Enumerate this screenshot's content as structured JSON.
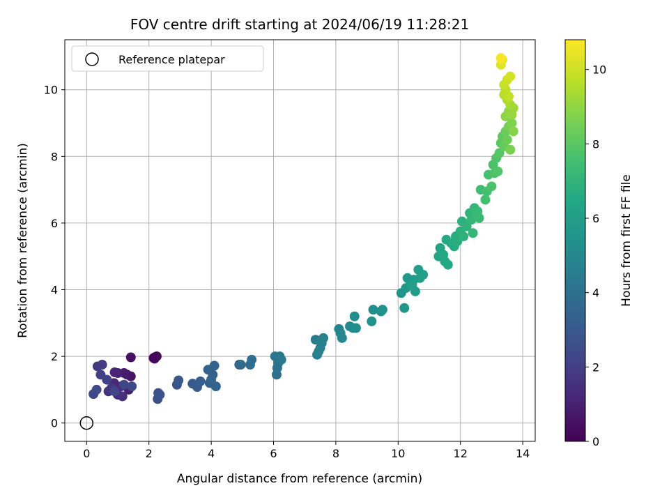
{
  "chart_data": {
    "type": "scatter",
    "title": "FOV centre drift starting at 2024/06/19 11:28:21",
    "xlabel": "Angular distance from reference (arcmin)",
    "ylabel": "Rotation from reference (arcmin)",
    "xlim": [
      -0.7,
      14.4
    ],
    "ylim": [
      -0.55,
      11.5
    ],
    "x_ticks": [
      0,
      2,
      4,
      6,
      8,
      10,
      12,
      14
    ],
    "y_ticks": [
      0,
      2,
      4,
      6,
      8,
      10
    ],
    "x_tick_labels": [
      "0",
      "2",
      "4",
      "6",
      "8",
      "10",
      "12",
      "14"
    ],
    "y_tick_labels": [
      "0",
      "2",
      "4",
      "6",
      "8",
      "10"
    ],
    "grid": true,
    "colormap": "viridis",
    "colorbar": {
      "label": "Hours from first FF file",
      "range": [
        0,
        10.8
      ],
      "ticks": [
        0,
        2,
        4,
        6,
        8,
        10
      ],
      "tick_labels": [
        "0",
        "2",
        "4",
        "6",
        "8",
        "10"
      ]
    },
    "legend": {
      "position": "top-left",
      "entries": [
        "Reference platepar"
      ]
    },
    "reference_point": {
      "x": 0,
      "y": 0,
      "marker": "open-circle"
    },
    "series": [
      {
        "points": [
          [
            2.15,
            1.95,
            0.1
          ],
          [
            2.2,
            1.98,
            0.15
          ],
          [
            2.25,
            2.0,
            0.2
          ],
          [
            2.18,
            1.93,
            0.25
          ],
          [
            1.42,
            1.97,
            0.5
          ],
          [
            1.42,
            1.4,
            0.6
          ],
          [
            1.3,
            1.45,
            0.7
          ],
          [
            1.2,
            1.5,
            0.8
          ],
          [
            1.35,
            1.0,
            0.9
          ],
          [
            1.0,
            1.5,
            1.0
          ],
          [
            0.9,
            1.52,
            1.1
          ],
          [
            0.88,
            1.2,
            1.2
          ],
          [
            1.1,
            1.1,
            1.3
          ],
          [
            1.0,
            0.85,
            1.4
          ],
          [
            1.15,
            0.8,
            1.5
          ],
          [
            0.7,
            0.95,
            1.6
          ],
          [
            0.8,
            1.05,
            1.7
          ],
          [
            0.35,
            1.7,
            1.8
          ],
          [
            0.5,
            1.75,
            1.9
          ],
          [
            0.45,
            1.45,
            2.0
          ],
          [
            0.65,
            1.3,
            2.1
          ],
          [
            0.9,
            0.95,
            2.2
          ],
          [
            1.2,
            1.15,
            2.3
          ],
          [
            1.45,
            1.1,
            2.4
          ],
          [
            0.22,
            0.87,
            2.4
          ],
          [
            0.32,
            1.0,
            2.5
          ],
          [
            2.28,
            0.72,
            2.6
          ],
          [
            2.35,
            0.85,
            2.7
          ],
          [
            2.3,
            0.9,
            2.7
          ],
          [
            2.9,
            1.15,
            2.8
          ],
          [
            2.95,
            1.28,
            2.9
          ],
          [
            3.4,
            1.18,
            3.0
          ],
          [
            3.55,
            1.08,
            3.1
          ],
          [
            3.65,
            1.25,
            3.15
          ],
          [
            3.95,
            1.2,
            3.2
          ],
          [
            3.9,
            1.6,
            3.3
          ],
          [
            4.05,
            1.45,
            3.35
          ],
          [
            4.1,
            1.72,
            3.4
          ],
          [
            4.15,
            1.1,
            3.45
          ],
          [
            4.0,
            1.3,
            3.5
          ],
          [
            4.9,
            1.75,
            3.6
          ],
          [
            4.95,
            1.75,
            3.7
          ],
          [
            5.25,
            1.75,
            3.8
          ],
          [
            5.3,
            1.9,
            3.9
          ],
          [
            6.1,
            1.45,
            4.0
          ],
          [
            6.12,
            1.65,
            4.05
          ],
          [
            6.15,
            1.8,
            4.1
          ],
          [
            6.2,
            2.0,
            4.15
          ],
          [
            6.05,
            2.0,
            4.2
          ],
          [
            6.25,
            1.9,
            4.3
          ],
          [
            7.35,
            2.5,
            4.5
          ],
          [
            7.4,
            2.05,
            4.55
          ],
          [
            7.5,
            2.25,
            4.6
          ],
          [
            7.55,
            2.4,
            4.65
          ],
          [
            7.6,
            2.55,
            4.7
          ],
          [
            7.45,
            2.15,
            4.75
          ],
          [
            8.1,
            2.82,
            4.9
          ],
          [
            8.15,
            2.7,
            4.95
          ],
          [
            8.2,
            2.55,
            5.0
          ],
          [
            8.45,
            2.9,
            5.1
          ],
          [
            8.55,
            2.85,
            5.15
          ],
          [
            8.6,
            3.2,
            5.2
          ],
          [
            8.65,
            2.85,
            5.25
          ],
          [
            9.2,
            3.4,
            5.35
          ],
          [
            9.5,
            3.4,
            5.4
          ],
          [
            9.15,
            3.05,
            5.45
          ],
          [
            9.45,
            3.35,
            5.5
          ],
          [
            10.1,
            3.9,
            5.6
          ],
          [
            10.2,
            3.45,
            5.65
          ],
          [
            10.25,
            4.05,
            5.7
          ],
          [
            10.3,
            4.35,
            5.75
          ],
          [
            10.4,
            4.2,
            5.8
          ],
          [
            10.5,
            4.3,
            5.85
          ],
          [
            10.55,
            3.95,
            5.9
          ],
          [
            10.65,
            4.6,
            5.95
          ],
          [
            10.7,
            4.35,
            6.0
          ],
          [
            10.8,
            4.45,
            6.05
          ],
          [
            10.45,
            4.15,
            6.1
          ],
          [
            11.3,
            5.0,
            6.3
          ],
          [
            11.35,
            5.25,
            6.35
          ],
          [
            11.45,
            5.05,
            6.4
          ],
          [
            11.5,
            4.85,
            6.45
          ],
          [
            11.6,
            4.75,
            6.5
          ],
          [
            11.55,
            5.5,
            6.55
          ],
          [
            11.7,
            5.4,
            6.6
          ],
          [
            11.8,
            5.3,
            6.65
          ],
          [
            11.85,
            5.6,
            6.7
          ],
          [
            11.9,
            5.45,
            6.75
          ],
          [
            12.0,
            5.75,
            6.8
          ],
          [
            12.05,
            6.05,
            6.85
          ],
          [
            12.1,
            5.6,
            6.9
          ],
          [
            12.2,
            5.9,
            6.95
          ],
          [
            12.3,
            6.3,
            7.0
          ],
          [
            12.35,
            6.1,
            7.05
          ],
          [
            12.4,
            5.7,
            7.1
          ],
          [
            12.45,
            6.45,
            7.15
          ],
          [
            12.5,
            6.25,
            7.2
          ],
          [
            12.55,
            6.35,
            7.25
          ],
          [
            12.6,
            6.15,
            7.3
          ],
          [
            12.65,
            7.0,
            7.4
          ],
          [
            12.8,
            6.7,
            7.5
          ],
          [
            12.85,
            6.95,
            7.55
          ],
          [
            12.9,
            7.45,
            7.6
          ],
          [
            13.0,
            7.1,
            7.65
          ],
          [
            13.05,
            7.75,
            7.7
          ],
          [
            13.1,
            7.5,
            7.75
          ],
          [
            13.15,
            7.95,
            7.8
          ],
          [
            13.2,
            7.55,
            7.85
          ],
          [
            13.25,
            8.1,
            7.9
          ],
          [
            13.3,
            8.4,
            8.0
          ],
          [
            13.35,
            8.6,
            8.1
          ],
          [
            13.4,
            8.3,
            8.2
          ],
          [
            13.45,
            8.75,
            8.3
          ],
          [
            13.5,
            8.5,
            8.4
          ],
          [
            13.55,
            8.9,
            8.5
          ],
          [
            13.6,
            8.2,
            8.6
          ],
          [
            13.65,
            9.0,
            8.7
          ],
          [
            13.7,
            8.75,
            8.8
          ],
          [
            13.45,
            9.2,
            8.9
          ],
          [
            13.55,
            9.35,
            9.0
          ],
          [
            13.65,
            9.25,
            9.1
          ],
          [
            13.7,
            9.45,
            9.2
          ],
          [
            13.6,
            9.55,
            9.3
          ],
          [
            13.5,
            9.7,
            9.45
          ],
          [
            13.4,
            9.85,
            9.6
          ],
          [
            13.45,
            10.0,
            9.7
          ],
          [
            13.55,
            9.8,
            9.8
          ],
          [
            13.4,
            10.15,
            9.9
          ],
          [
            13.5,
            10.3,
            10.0
          ],
          [
            13.6,
            10.4,
            10.1
          ],
          [
            13.3,
            10.75,
            10.3
          ],
          [
            13.35,
            10.9,
            10.5
          ],
          [
            13.3,
            10.95,
            10.7
          ]
        ]
      }
    ]
  }
}
